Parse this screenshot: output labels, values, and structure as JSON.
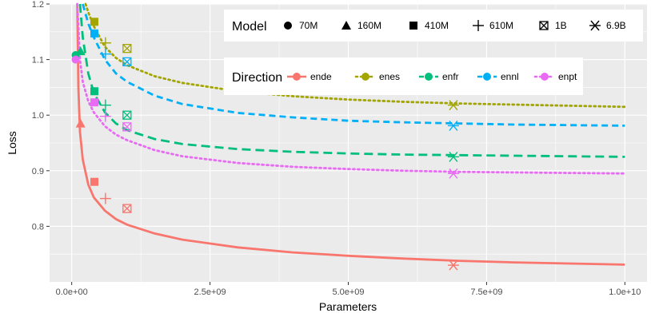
{
  "chart_data": {
    "type": "scatter",
    "xlabel": "Parameters",
    "ylabel": "Loss",
    "xlim": [
      -400000000,
      10400000000
    ],
    "ylim": [
      0.7,
      1.2
    ],
    "x_ticks": [
      0,
      2500000000,
      5000000000,
      7500000000,
      10000000000
    ],
    "x_tick_labels": [
      "0.0e+00",
      "2.5e+09",
      "5.0e+09",
      "7.5e+09",
      "1.0e+10"
    ],
    "y_ticks": [
      0.8,
      0.9,
      1.0,
      1.1,
      1.2
    ],
    "y_tick_labels": [
      "0.8",
      "0.9",
      "1.0",
      "1.1",
      "1.2"
    ],
    "grid": true,
    "legends": {
      "model": {
        "title": "Model",
        "placement": "top-right",
        "entries": [
          {
            "label": "70M",
            "shape": "circle"
          },
          {
            "label": "160M",
            "shape": "triangle"
          },
          {
            "label": "410M",
            "shape": "square"
          },
          {
            "label": "610M",
            "shape": "plus"
          },
          {
            "label": "1B",
            "shape": "boxcross"
          },
          {
            "label": "6.9B",
            "shape": "asterisk"
          }
        ]
      },
      "direction": {
        "title": "Direction",
        "placement": "top-right",
        "entries": [
          "ende",
          "enes",
          "enfr",
          "ennl",
          "enpt"
        ]
      }
    },
    "model_params": [
      70000000,
      160000000,
      410000000,
      610000000,
      1000000000,
      6900000000
    ],
    "series": [
      {
        "name": "ende",
        "color": "#F8766D",
        "linetype": "solid",
        "points": [
          null,
          0.985,
          0.88,
          0.85,
          0.832,
          0.73
        ],
        "fit": {
          "x": [
            100000000,
            120000000,
            150000000,
            200000000,
            300000000,
            400000000,
            600000000,
            800000000,
            1000000000,
            1500000000,
            2000000000,
            3000000000,
            4000000000,
            5000000000,
            6000000000,
            7000000000,
            8000000000,
            9000000000,
            10000000000
          ],
          "y": [
            1.2,
            1.05,
            0.97,
            0.92,
            0.875,
            0.852,
            0.828,
            0.813,
            0.803,
            0.787,
            0.776,
            0.762,
            0.753,
            0.747,
            0.742,
            0.738,
            0.735,
            0.733,
            0.731
          ]
        }
      },
      {
        "name": "enes",
        "color": "#A3A500",
        "linetype": "dotted",
        "points": [
          null,
          null,
          1.168,
          1.13,
          1.12,
          1.018
        ],
        "fit": {
          "x": [
            250000000,
            300000000,
            400000000,
            600000000,
            800000000,
            1000000000,
            1500000000,
            2000000000,
            3000000000,
            4000000000,
            5000000000,
            6000000000,
            7000000000,
            8000000000,
            9000000000,
            10000000000
          ],
          "y": [
            1.2,
            1.185,
            1.16,
            1.123,
            1.103,
            1.09,
            1.07,
            1.058,
            1.043,
            1.034,
            1.028,
            1.024,
            1.021,
            1.019,
            1.017,
            1.015
          ]
        }
      },
      {
        "name": "enfr",
        "color": "#00BF7D",
        "linetype": "longdash",
        "points": [
          1.108,
          1.115,
          1.043,
          1.018,
          1.0,
          0.925
        ],
        "fit": {
          "x": [
            150000000,
            200000000,
            300000000,
            400000000,
            600000000,
            800000000,
            1000000000,
            1500000000,
            2000000000,
            3000000000,
            4000000000,
            5000000000,
            6000000000,
            7000000000,
            8000000000,
            9000000000,
            10000000000
          ],
          "y": [
            1.2,
            1.14,
            1.075,
            1.04,
            1.005,
            0.985,
            0.973,
            0.957,
            0.948,
            0.939,
            0.934,
            0.931,
            0.929,
            0.928,
            0.927,
            0.926,
            0.925
          ]
        }
      },
      {
        "name": "ennl",
        "color": "#00B0F6",
        "linetype": "dashed",
        "points": [
          null,
          null,
          1.147,
          1.11,
          1.096,
          0.981
        ],
        "fit": {
          "x": [
            200000000,
            300000000,
            400000000,
            600000000,
            800000000,
            1000000000,
            1500000000,
            2000000000,
            3000000000,
            4000000000,
            5000000000,
            6000000000,
            7000000000,
            8000000000,
            9000000000,
            10000000000
          ],
          "y": [
            1.2,
            1.165,
            1.14,
            1.1,
            1.075,
            1.06,
            1.035,
            1.02,
            1.004,
            0.996,
            0.99,
            0.987,
            0.985,
            0.983,
            0.982,
            0.981
          ]
        }
      },
      {
        "name": "enpt",
        "color": "#E76BF3",
        "linetype": "dotted",
        "points": [
          1.1,
          null,
          1.023,
          0.998,
          0.979,
          0.895
        ],
        "fit": {
          "x": [
            100000000,
            150000000,
            200000000,
            300000000,
            400000000,
            600000000,
            800000000,
            1000000000,
            1500000000,
            2000000000,
            3000000000,
            4000000000,
            5000000000,
            6000000000,
            7000000000,
            8000000000,
            9000000000,
            10000000000
          ],
          "y": [
            1.2,
            1.1,
            1.06,
            1.025,
            1.005,
            0.98,
            0.965,
            0.955,
            0.937,
            0.926,
            0.914,
            0.907,
            0.903,
            0.9,
            0.898,
            0.897,
            0.896,
            0.895
          ]
        }
      }
    ]
  }
}
